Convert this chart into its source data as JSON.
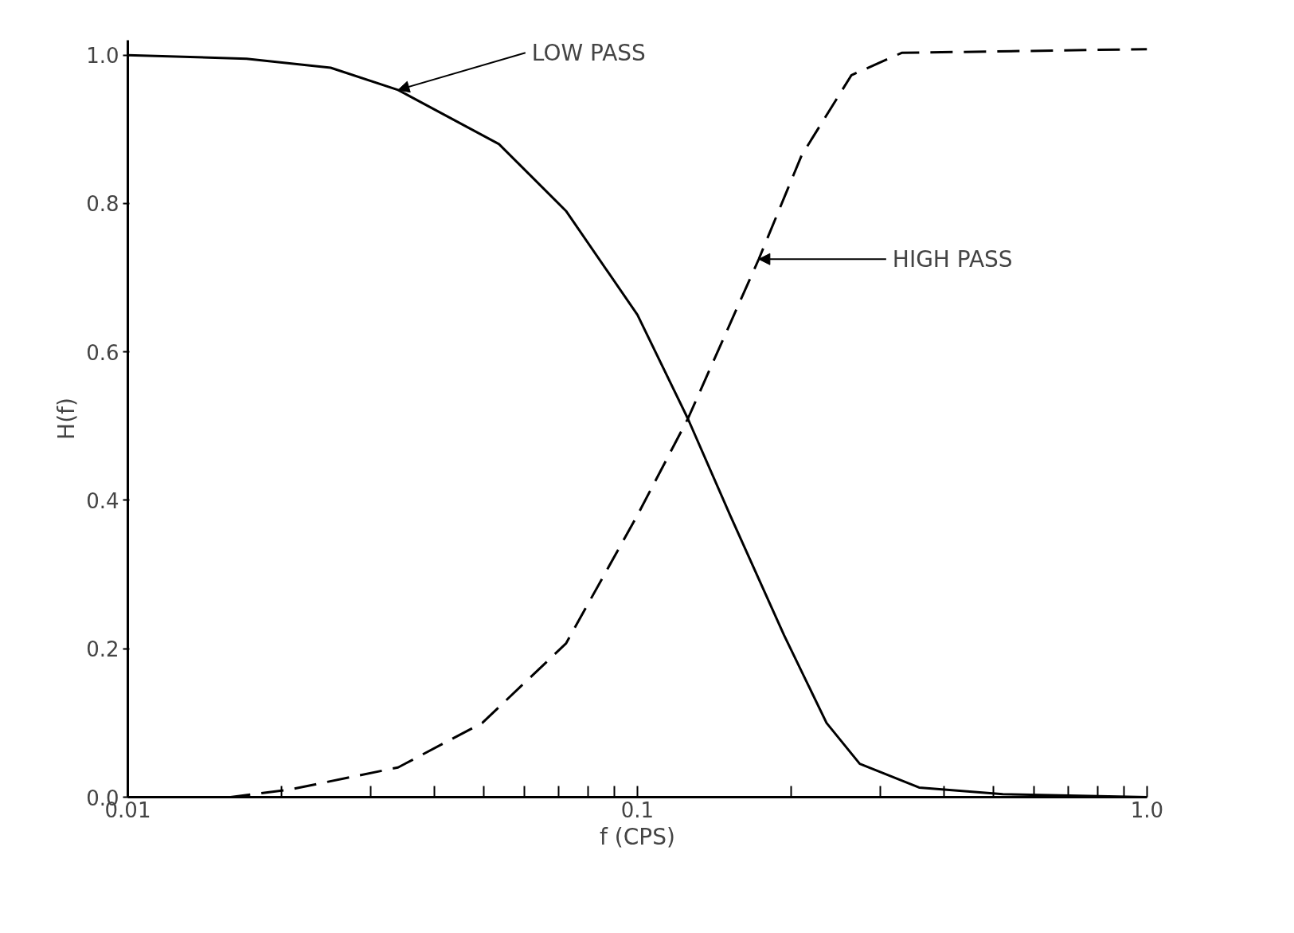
{
  "chart_data": {
    "type": "line",
    "xlabel": "f (CPS)",
    "ylabel": "H(f)",
    "log": "x",
    "xlim": [
      0.01,
      1.0
    ],
    "ylim": [
      0,
      1.02
    ],
    "xticks": [
      0.01,
      {
        "value": 0.02,
        "label": null
      },
      {
        "value": 0.03,
        "label": null
      },
      {
        "value": 0.04,
        "label": null
      },
      {
        "value": 0.05,
        "label": null
      },
      {
        "value": 0.06,
        "label": null
      },
      {
        "value": 0.07,
        "label": null
      },
      {
        "value": 0.08,
        "label": null
      },
      {
        "value": 0.09,
        "label": null
      },
      0.1,
      {
        "value": 0.2,
        "label": null
      },
      {
        "value": 0.3,
        "label": null
      },
      {
        "value": 0.4,
        "label": null
      },
      {
        "value": 0.5,
        "label": null
      },
      {
        "value": 0.6,
        "label": null
      },
      {
        "value": 0.7,
        "label": null
      },
      {
        "value": 0.8,
        "label": null
      },
      {
        "value": 0.9,
        "label": null
      },
      {
        "value": 1.0,
        "label": "1.0"
      }
    ],
    "yticks": [
      {
        "value": 0,
        "label": "0.0"
      },
      0.2,
      0.4,
      0.6,
      0.8,
      {
        "value": 1.0,
        "label": "1.0"
      }
    ],
    "grid": false,
    "series": [
      {
        "color": "#000000",
        "line_style": "solid",
        "x": [
          0.01,
          0.0171,
          0.025,
          0.0339,
          0.0535,
          0.0724,
          0.1,
          0.1256,
          0.152,
          0.194,
          0.235,
          0.273,
          0.357,
          0.521,
          1.0
        ],
        "values": [
          1.0,
          0.995,
          0.983,
          0.953,
          0.88,
          0.79,
          0.65,
          0.51,
          0.38,
          0.218,
          0.1,
          0.045,
          0.013,
          0.004,
          0.0
        ]
      },
      {
        "color": "#000000",
        "line_style": "dashed",
        "x": [
          0.01,
          0.0159,
          0.0207,
          0.0339,
          0.0496,
          0.0724,
          0.1,
          0.1256,
          0.173,
          0.21,
          0.263,
          0.33,
          1.0
        ],
        "values": [
          0.0,
          0.0,
          0.01,
          0.04,
          0.1,
          0.207,
          0.38,
          0.51,
          0.725,
          0.865,
          0.973,
          1.003,
          1.008
        ]
      }
    ],
    "annotations": [
      {
        "text": "LOW PASS",
        "x": 0.0339,
        "y": 0.953
      },
      {
        "text": "HIGH PASS",
        "x": 0.173,
        "y": 0.725
      }
    ]
  }
}
